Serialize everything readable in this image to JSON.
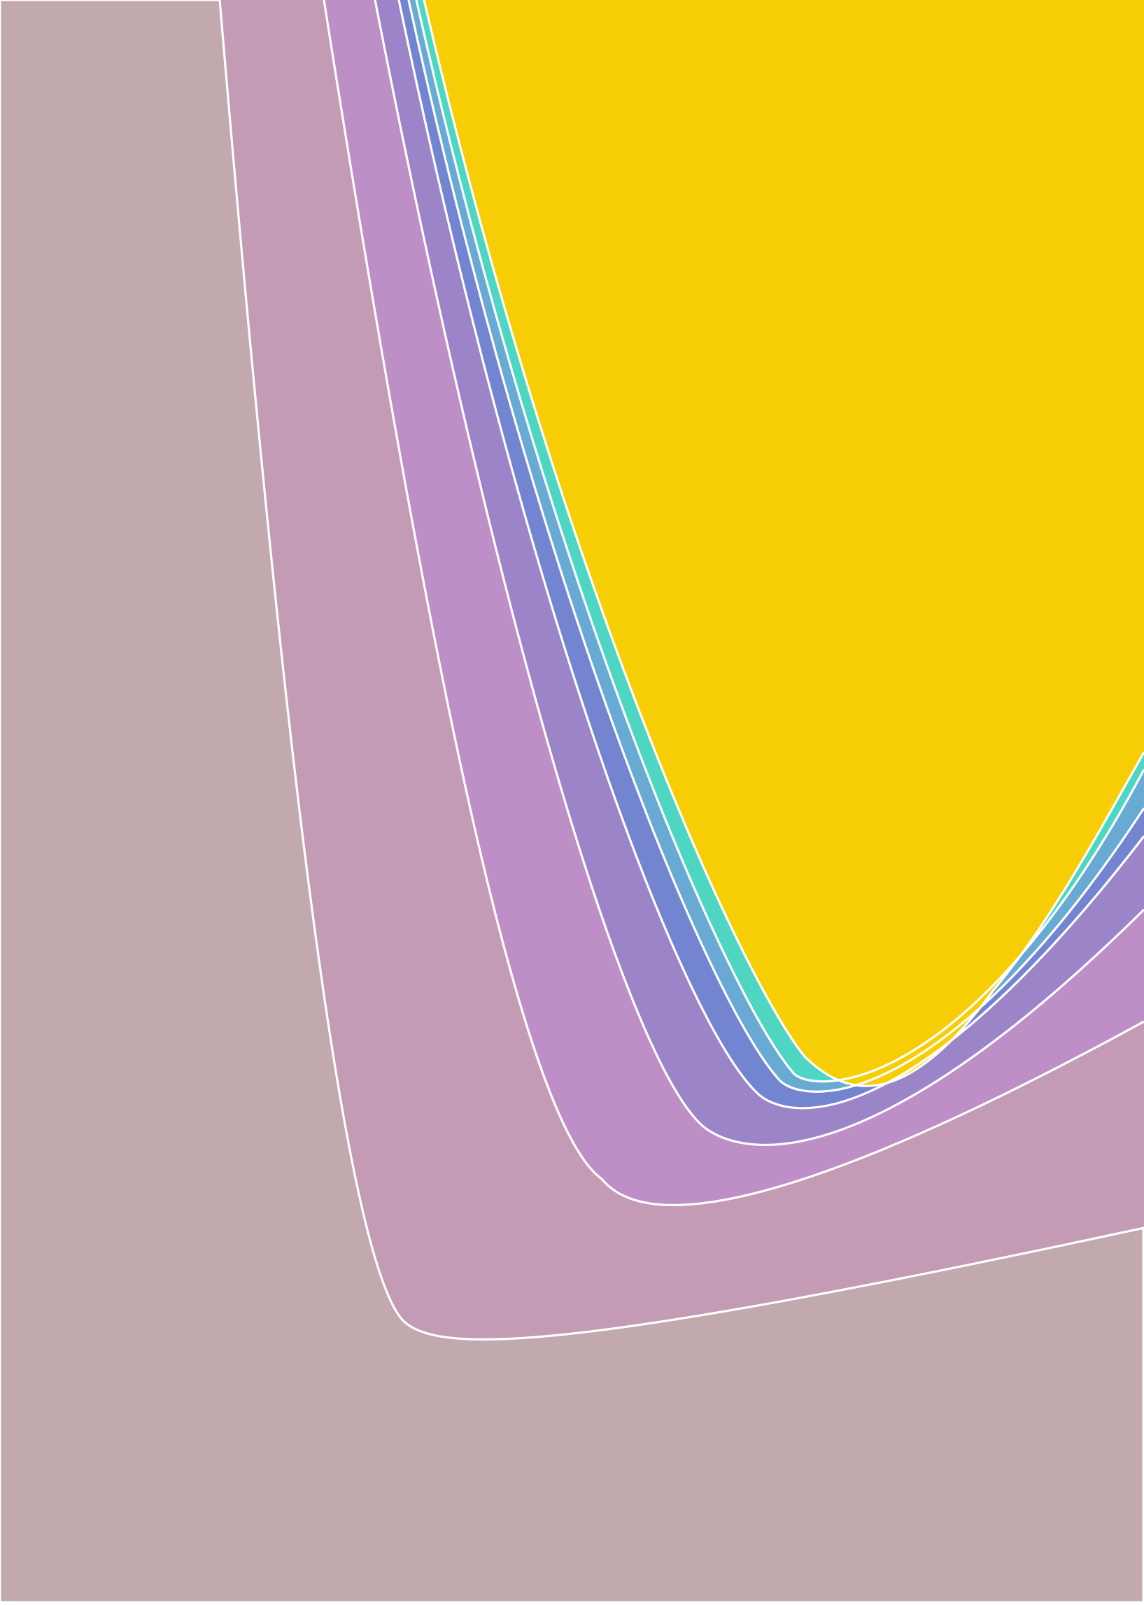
{
  "chart_data": {
    "type": "filled-contour",
    "title": "",
    "xlabel": "",
    "ylabel": "",
    "axes_visible": false,
    "grid": false,
    "legend": "none",
    "contour_line_color": "#ffffff",
    "background_color": "#c2a9ad",
    "levels": [
      {
        "index": 0,
        "color": "#c2a9ad"
      },
      {
        "index": 1,
        "color": "#c39bb5"
      },
      {
        "index": 2,
        "color": "#be8ec6"
      },
      {
        "index": 3,
        "color": "#9c84c9"
      },
      {
        "index": 4,
        "color": "#7384d0"
      },
      {
        "index": 5,
        "color": "#68aad3"
      },
      {
        "index": 6,
        "color": "#4fd6c2"
      },
      {
        "index": 7,
        "color": "#f7cd05"
      }
    ]
  }
}
